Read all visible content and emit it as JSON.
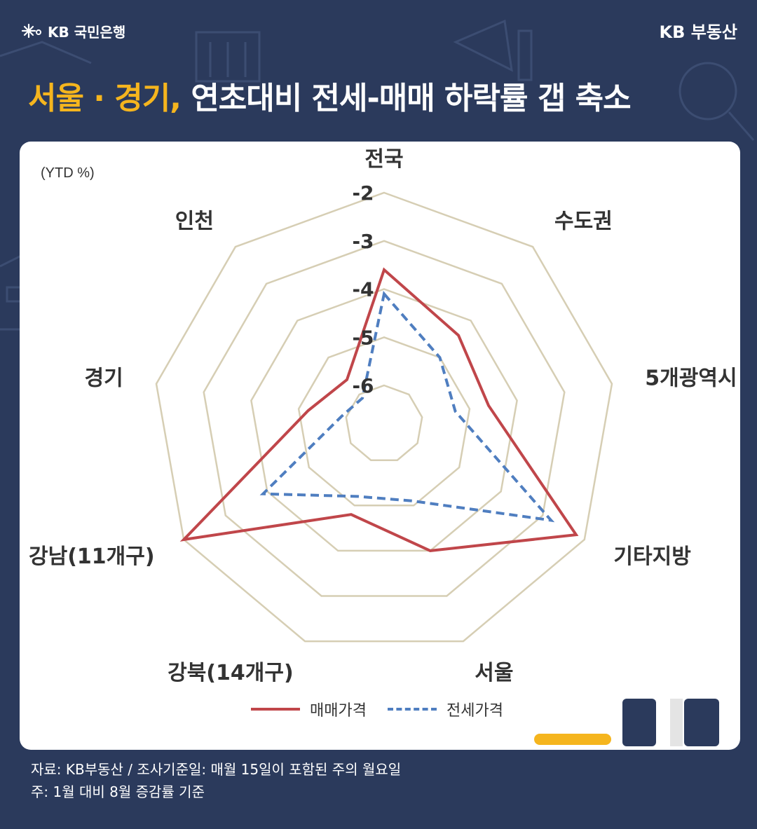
{
  "header": {
    "bank_logo": "KB 국민은행",
    "brand_label": "KB 부동산",
    "title_highlight": "서울 · 경기,",
    "title_rest": " 연초대비 전세-매매 하락률 갭 축소"
  },
  "chart_data": {
    "type": "radar",
    "unit_label": "(YTD %)",
    "axes": [
      "전국",
      "수도권",
      "5개광역시",
      "기타지방",
      "서울",
      "강북(14개구)",
      "강남(11개구)",
      "경기",
      "인천"
    ],
    "scale": {
      "min": -6.8,
      "max": -2,
      "ticks": [
        -2,
        -3,
        -4,
        -5,
        -6
      ]
    },
    "series": [
      {
        "name": "매매가격",
        "color": "#c0464a",
        "dash": false,
        "values": [
          -3.6,
          -4.4,
          -4.6,
          -2.2,
          -4.0,
          -4.8,
          -2.0,
          -5.2,
          -5.6
        ]
      },
      {
        "name": "전세가격",
        "color": "#4f7ec0",
        "dash": true,
        "values": [
          -4.1,
          -5.0,
          -5.3,
          -2.8,
          -5.1,
          -5.2,
          -3.9,
          -5.9,
          -6.1
        ]
      }
    ]
  },
  "footnotes": [
    "자료: KB부동산 / 조사기준일: 매월 15일이 포함된 주의 월요일",
    "주: 1월 대비 8월 증감률 기준"
  ]
}
